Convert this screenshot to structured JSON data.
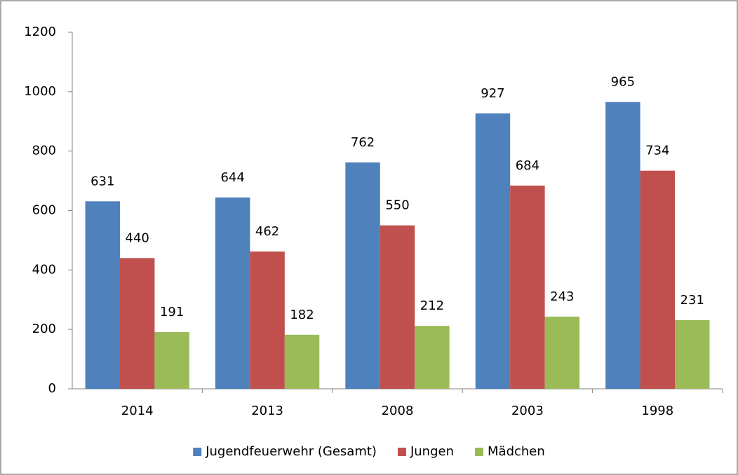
{
  "chart_data": {
    "type": "bar",
    "categories": [
      "2014",
      "2013",
      "2008",
      "2003",
      "1998"
    ],
    "series": [
      {
        "name": "Jugendfeuerwehr (Gesamt)",
        "color": "#4f81bd",
        "values": [
          631,
          644,
          762,
          927,
          965
        ]
      },
      {
        "name": "Jungen",
        "color": "#c0504d",
        "values": [
          440,
          462,
          550,
          684,
          734
        ]
      },
      {
        "name": "Mädchen",
        "color": "#9bbb59",
        "values": [
          191,
          182,
          212,
          243,
          231
        ]
      }
    ],
    "ylim": [
      0,
      1200
    ],
    "yticks": [
      0,
      200,
      400,
      600,
      800,
      1000,
      1200
    ],
    "grid": false,
    "legend": "bottom",
    "data_labels": true
  }
}
